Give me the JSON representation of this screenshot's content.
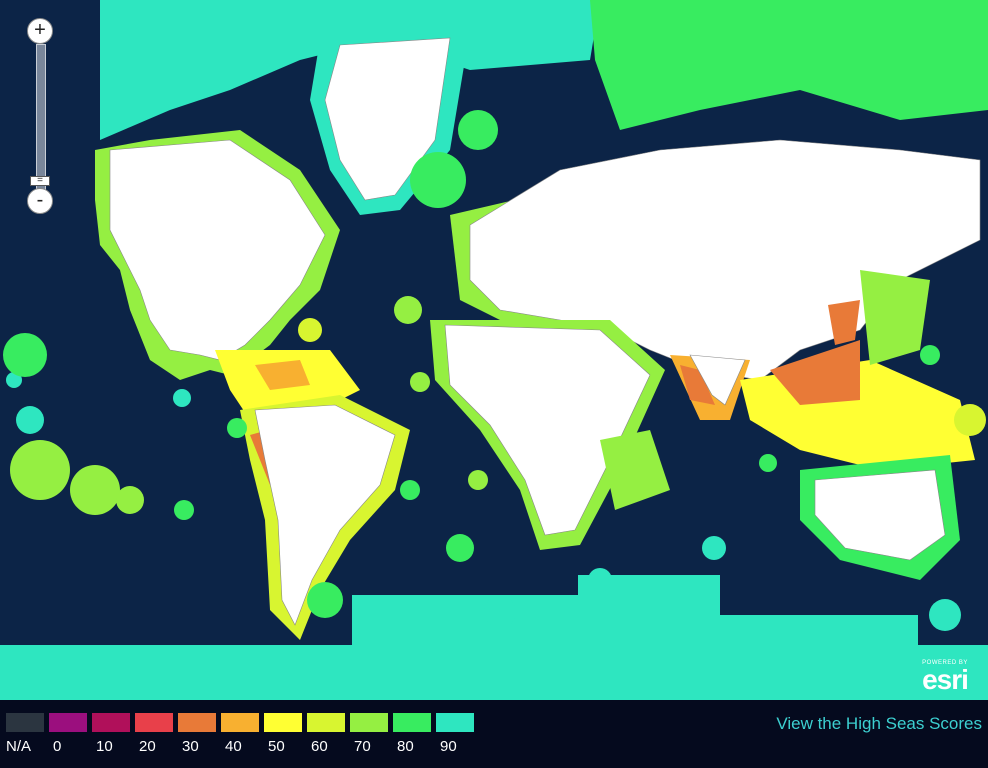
{
  "zoom": {
    "in_label": "+",
    "out_label": "-",
    "thumb_label": "="
  },
  "attribution": {
    "powered_by": "POWERED BY",
    "brand": "esri"
  },
  "legend": {
    "items": [
      {
        "label": "N/A",
        "color": "#2b3540"
      },
      {
        "label": "0",
        "color": "#9b0f7e"
      },
      {
        "label": "10",
        "color": "#b0105a"
      },
      {
        "label": "20",
        "color": "#e8404a"
      },
      {
        "label": "30",
        "color": "#e87a38"
      },
      {
        "label": "40",
        "color": "#f8b030"
      },
      {
        "label": "50",
        "color": "#ffff33"
      },
      {
        "label": "60",
        "color": "#d8f530"
      },
      {
        "label": "70",
        "color": "#95ef42"
      },
      {
        "label": "80",
        "color": "#38ec60"
      },
      {
        "label": "90",
        "color": "#2ee6c0"
      }
    ]
  },
  "link": {
    "label": "View the High Seas Scores"
  },
  "map_colors": {
    "ocean": "#0c2447",
    "land": "#ffffff",
    "high_seas": "#2ee6c0"
  }
}
